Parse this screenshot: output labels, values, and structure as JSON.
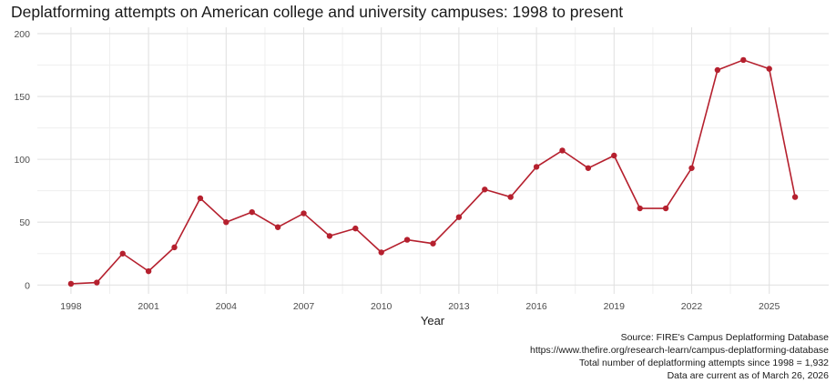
{
  "chart_data": {
    "type": "line",
    "title": "Deplatforming attempts on American college and university campuses: 1998 to present",
    "xlabel": "Year",
    "ylabel": "",
    "x": [
      1998,
      1999,
      2000,
      2001,
      2002,
      2003,
      2004,
      2005,
      2006,
      2007,
      2008,
      2009,
      2010,
      2011,
      2012,
      2013,
      2014,
      2015,
      2016,
      2017,
      2018,
      2019,
      2020,
      2021,
      2022,
      2023,
      2024,
      2025,
      2026
    ],
    "values": [
      1,
      2,
      25,
      11,
      30,
      69,
      50,
      58,
      46,
      57,
      39,
      45,
      26,
      36,
      33,
      54,
      76,
      70,
      94,
      107,
      93,
      103,
      61,
      61,
      93,
      171,
      179,
      172,
      70
    ],
    "xlim": [
      1996.7,
      2027.3
    ],
    "ylim": [
      -7,
      205
    ],
    "x_ticks": [
      "1998",
      "2001",
      "2004",
      "2007",
      "2010",
      "2013",
      "2016",
      "2019",
      "2022",
      "2025"
    ],
    "y_ticks": [
      "0",
      "50",
      "100",
      "150",
      "200"
    ],
    "grid": true,
    "line_color": "#b5202e"
  },
  "caption": {
    "line1": "Source: FIRE's Campus Deplatforming Database",
    "line2": "https://www.thefire.org/research-learn/campus-deplatforming-database",
    "line3": "Total number of deplatforming attempts since 1998 = 1,932",
    "line4": "Data are current as of March 26, 2026"
  }
}
